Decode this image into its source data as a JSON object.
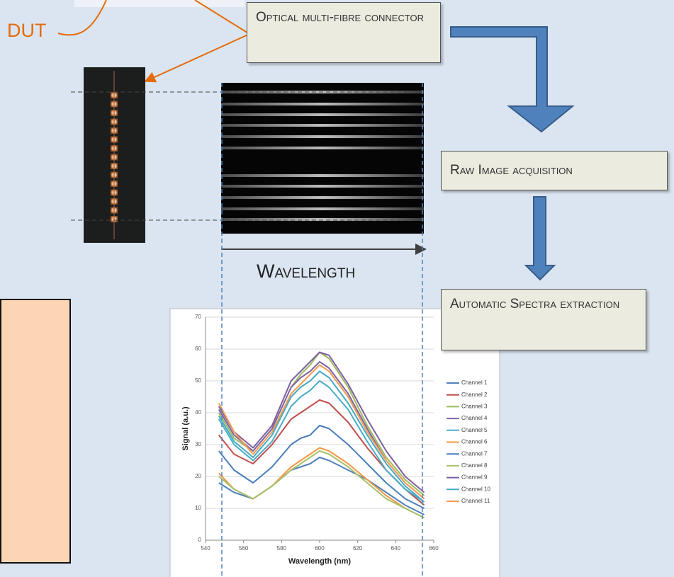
{
  "chart_data": {
    "type": "line",
    "x_label": "Wavelength (nm)",
    "y_label": "Signal (a.u.)",
    "x": [
      547,
      555,
      565,
      575,
      585,
      590,
      595,
      600,
      605,
      615,
      625,
      635,
      645,
      655
    ],
    "series": [
      {
        "name": "Channel 1",
        "color": "#4f81bd",
        "values": [
          18,
          15,
          13,
          17,
          22,
          23,
          24,
          26,
          25,
          22,
          19,
          15,
          11,
          8
        ]
      },
      {
        "name": "Channel 2",
        "color": "#c0504d",
        "values": [
          33,
          27,
          24,
          30,
          38,
          40,
          42,
          44,
          43,
          37,
          29,
          22,
          16,
          11
        ]
      },
      {
        "name": "Channel 3",
        "color": "#9bbb59",
        "values": [
          40,
          32,
          28,
          35,
          48,
          52,
          55,
          59,
          57,
          48,
          36,
          26,
          19,
          14
        ]
      },
      {
        "name": "Channel 4",
        "color": "#8064a2",
        "values": [
          41,
          33,
          28,
          35,
          48,
          51,
          53,
          56,
          54,
          46,
          35,
          25,
          18,
          13
        ]
      },
      {
        "name": "Channel 5",
        "color": "#4bacc6",
        "values": [
          38,
          30,
          25,
          31,
          42,
          45,
          47,
          50,
          48,
          41,
          31,
          22,
          16,
          12
        ]
      },
      {
        "name": "Channel 6",
        "color": "#f79646",
        "values": [
          21,
          16,
          13,
          17,
          23,
          25,
          27,
          29,
          28,
          24,
          19,
          14,
          10,
          7
        ]
      },
      {
        "name": "Channel 7",
        "color": "#4a7ebb",
        "values": [
          28,
          22,
          18,
          23,
          30,
          32,
          33,
          36,
          35,
          30,
          24,
          18,
          13,
          10
        ]
      },
      {
        "name": "Channel 8",
        "color": "#a5c26b",
        "values": [
          20,
          16,
          13,
          17,
          22,
          24,
          26,
          28,
          27,
          23,
          18,
          13,
          10,
          7
        ]
      },
      {
        "name": "Channel 9",
        "color": "#7d5fa0",
        "values": [
          42,
          34,
          29,
          36,
          50,
          53,
          56,
          59,
          58,
          49,
          38,
          28,
          20,
          15
        ]
      },
      {
        "name": "Channel 10",
        "color": "#46aac5",
        "values": [
          39,
          31,
          26,
          33,
          45,
          48,
          50,
          53,
          51,
          43,
          33,
          24,
          17,
          12
        ]
      },
      {
        "name": "Channel 11",
        "color": "#f89b4e",
        "values": [
          43,
          34,
          27,
          34,
          46,
          49,
          52,
          55,
          53,
          45,
          34,
          25,
          18,
          13
        ]
      }
    ],
    "xlim": [
      540,
      660
    ],
    "xticks": [
      540,
      560,
      580,
      600,
      620,
      640,
      660
    ],
    "ylim": [
      0,
      70
    ],
    "yticks": [
      0,
      10,
      20,
      30,
      40,
      50,
      60,
      70
    ],
    "grid": true,
    "legend": "right"
  },
  "diagram": {
    "dut_label": "DUT",
    "connector_label": "Optical multi-fibre connector",
    "acquisition_label": "Raw Image acquisition",
    "extraction_label": "Automatic Spectra extraction",
    "wavelength_label": "Wavelength"
  }
}
